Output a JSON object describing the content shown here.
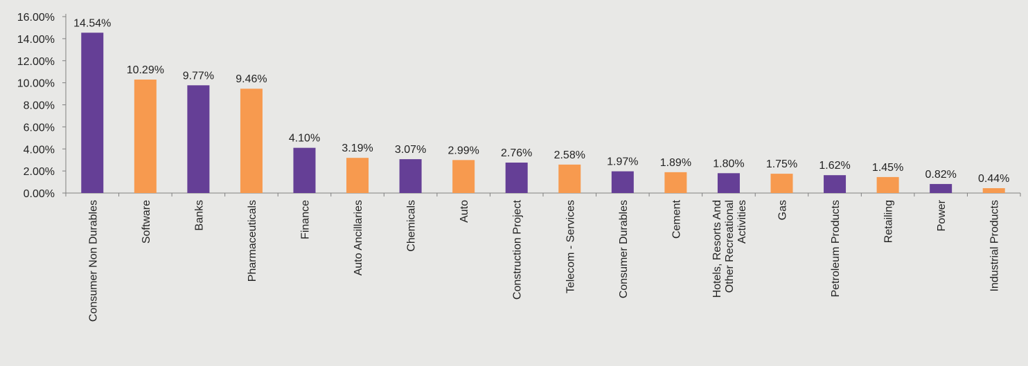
{
  "chart_data": {
    "type": "bar",
    "title": "",
    "xlabel": "",
    "ylabel": "",
    "ylim": [
      0,
      16
    ],
    "y_ticks": [
      "0.00%",
      "2.00%",
      "4.00%",
      "6.00%",
      "8.00%",
      "10.00%",
      "12.00%",
      "14.00%",
      "16.00%"
    ],
    "grid": false,
    "legend": "none",
    "categories": [
      "Consumer Non Durables",
      "Software",
      "Banks",
      "Pharmaceuticals",
      "Finance",
      "Auto Ancillaries",
      "Chemicals",
      "Auto",
      "Construction Project",
      "Telecom - Services",
      "Consumer Durables",
      "Cement",
      "Hotels, Resorts And Other Recreational Activities",
      "Gas",
      "Petroleum Products",
      "Retailing",
      "Power",
      "Industrial Products"
    ],
    "category_lines": [
      [
        "Consumer Non Durables"
      ],
      [
        "Software"
      ],
      [
        "Banks"
      ],
      [
        "Pharmaceuticals"
      ],
      [
        "Finance"
      ],
      [
        "Auto Ancillaries"
      ],
      [
        "Chemicals"
      ],
      [
        "Auto"
      ],
      [
        "Construction Project"
      ],
      [
        "Telecom - Services"
      ],
      [
        "Consumer Durables"
      ],
      [
        "Cement"
      ],
      [
        "Hotels, Resorts And",
        "Other Recreational",
        "Activities"
      ],
      [
        "Gas"
      ],
      [
        "Petroleum Products"
      ],
      [
        "Retailing"
      ],
      [
        "Power"
      ],
      [
        "Industrial Products"
      ]
    ],
    "values": [
      14.54,
      10.29,
      9.77,
      9.46,
      4.1,
      3.19,
      3.07,
      2.99,
      2.76,
      2.58,
      1.97,
      1.89,
      1.8,
      1.75,
      1.62,
      1.45,
      0.82,
      0.44
    ],
    "data_labels": [
      "14.54%",
      "10.29%",
      "9.77%",
      "9.46%",
      "4.10%",
      "3.19%",
      "3.07%",
      "2.99%",
      "2.76%",
      "2.58%",
      "1.97%",
      "1.89%",
      "1.80%",
      "1.75%",
      "1.62%",
      "1.45%",
      "0.82%",
      "0.44%"
    ],
    "colors": {
      "purple": "#653f96",
      "orange": "#f79a4f",
      "axis": "#7f7f7f",
      "background": "#e8e8e6"
    },
    "bar_colors": [
      "purple",
      "orange",
      "purple",
      "orange",
      "purple",
      "orange",
      "purple",
      "orange",
      "purple",
      "orange",
      "purple",
      "orange",
      "purple",
      "orange",
      "purple",
      "orange",
      "purple",
      "orange"
    ]
  }
}
